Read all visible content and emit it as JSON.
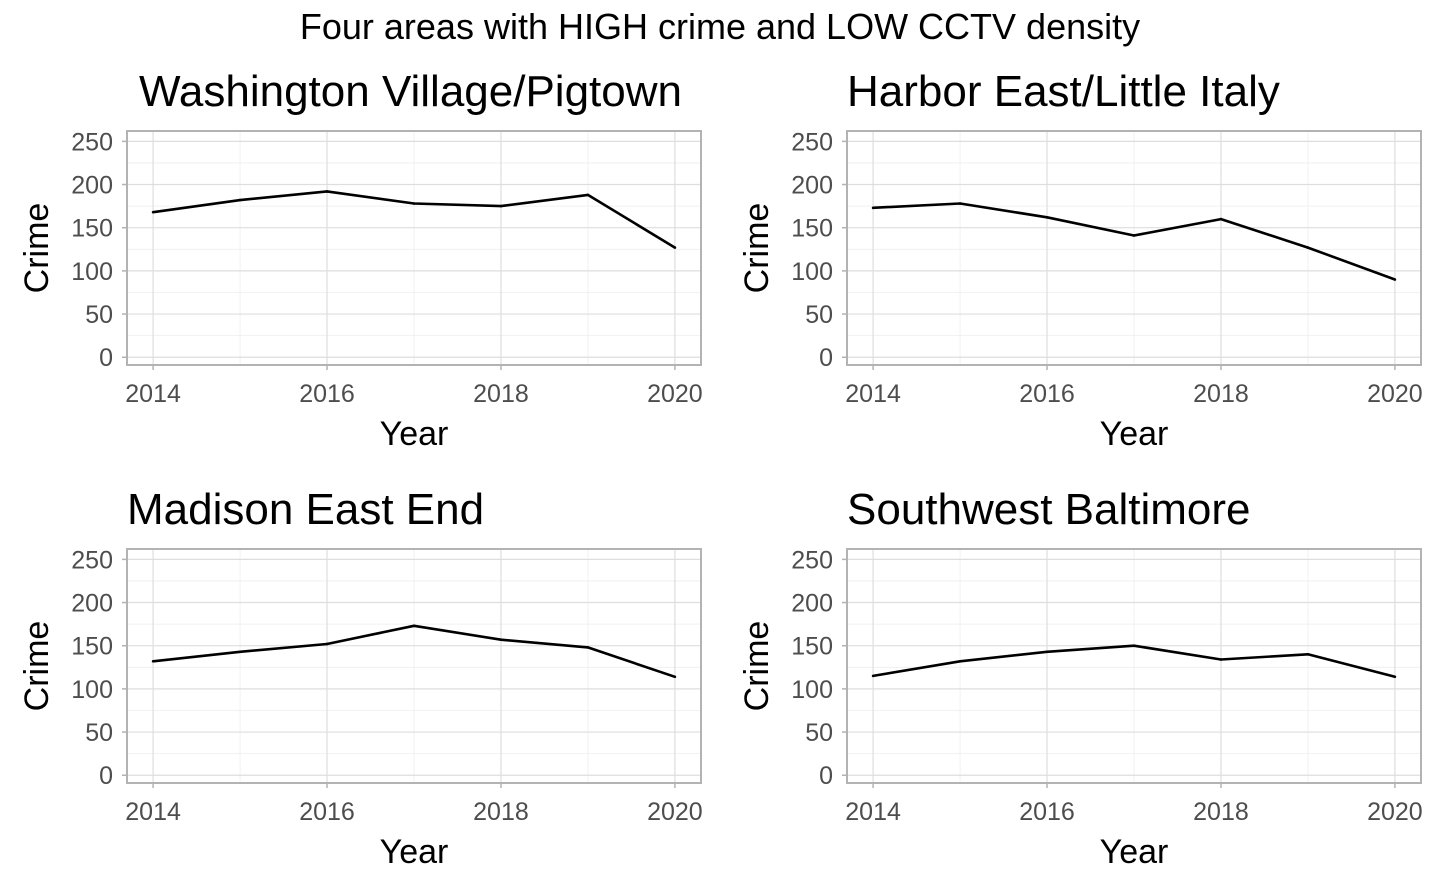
{
  "page_title": "Four areas with HIGH crime and LOW CCTV density",
  "chart_data": [
    {
      "type": "line",
      "title": "Washington Village/Pigtown",
      "xlabel": "Year",
      "ylabel": "Crime",
      "x": [
        2014,
        2015,
        2016,
        2017,
        2018,
        2019,
        2020
      ],
      "values": [
        168,
        182,
        192,
        178,
        175,
        188,
        127
      ],
      "xticks": [
        "2014",
        "2016",
        "2018",
        "2020"
      ],
      "yticks": [
        "0",
        "50",
        "100",
        "150",
        "200",
        "250"
      ],
      "xlim": [
        2013.7,
        2020.3
      ],
      "ylim": [
        -9,
        262
      ],
      "grid": true
    },
    {
      "type": "line",
      "title": "Harbor East/Little Italy",
      "xlabel": "Year",
      "ylabel": "Crime",
      "x": [
        2014,
        2015,
        2016,
        2017,
        2018,
        2019,
        2020
      ],
      "values": [
        173,
        178,
        162,
        141,
        160,
        127,
        90
      ],
      "xticks": [
        "2014",
        "2016",
        "2018",
        "2020"
      ],
      "yticks": [
        "0",
        "50",
        "100",
        "150",
        "200",
        "250"
      ],
      "xlim": [
        2013.7,
        2020.3
      ],
      "ylim": [
        -9,
        262
      ],
      "grid": true
    },
    {
      "type": "line",
      "title": "Madison East End",
      "xlabel": "Year",
      "ylabel": "Crime",
      "x": [
        2014,
        2015,
        2016,
        2017,
        2018,
        2019,
        2020
      ],
      "values": [
        132,
        143,
        152,
        173,
        157,
        148,
        114
      ],
      "xticks": [
        "2014",
        "2016",
        "2018",
        "2020"
      ],
      "yticks": [
        "0",
        "50",
        "100",
        "150",
        "200",
        "250"
      ],
      "xlim": [
        2013.7,
        2020.3
      ],
      "ylim": [
        -9,
        262
      ],
      "grid": true
    },
    {
      "type": "line",
      "title": "Southwest Baltimore",
      "xlabel": "Year",
      "ylabel": "Crime",
      "x": [
        2014,
        2015,
        2016,
        2017,
        2018,
        2019,
        2020
      ],
      "values": [
        115,
        132,
        143,
        150,
        134,
        140,
        114
      ],
      "xticks": [
        "2014",
        "2016",
        "2018",
        "2020"
      ],
      "yticks": [
        "0",
        "50",
        "100",
        "150",
        "200",
        "250"
      ],
      "xlim": [
        2013.7,
        2020.3
      ],
      "ylim": [
        -9,
        262
      ],
      "grid": true
    }
  ]
}
